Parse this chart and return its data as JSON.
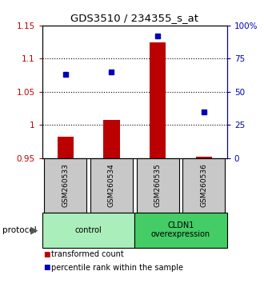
{
  "title": "GDS3510 / 234355_s_at",
  "samples": [
    "GSM260533",
    "GSM260534",
    "GSM260535",
    "GSM260536"
  ],
  "red_values": [
    0.983,
    1.008,
    1.125,
    0.952
  ],
  "blue_values": [
    63,
    65,
    92,
    35
  ],
  "ylim_left": [
    0.95,
    1.15
  ],
  "ylim_right": [
    0,
    100
  ],
  "yticks_left": [
    0.95,
    1.0,
    1.05,
    1.1,
    1.15
  ],
  "ytick_labels_left": [
    "0.95",
    "1",
    "1.05",
    "1.1",
    "1.15"
  ],
  "yticks_right": [
    0,
    25,
    50,
    75,
    100
  ],
  "ytick_labels_right": [
    "0",
    "25",
    "50",
    "75",
    "100%"
  ],
  "dotted_yticks": [
    1.0,
    1.05,
    1.1
  ],
  "groups": [
    {
      "label": "control",
      "samples": [
        0,
        1
      ],
      "color": "#aaeebb"
    },
    {
      "label": "CLDN1\noverexpression",
      "samples": [
        2,
        3
      ],
      "color": "#44cc66"
    }
  ],
  "red_color": "#BB0000",
  "blue_color": "#0000BB",
  "bar_width": 0.35,
  "bar_base": 0.95,
  "sample_box_color": "#C8C8C8",
  "protocol_label": "protocol",
  "legend_red": "transformed count",
  "legend_blue": "percentile rank within the sample"
}
